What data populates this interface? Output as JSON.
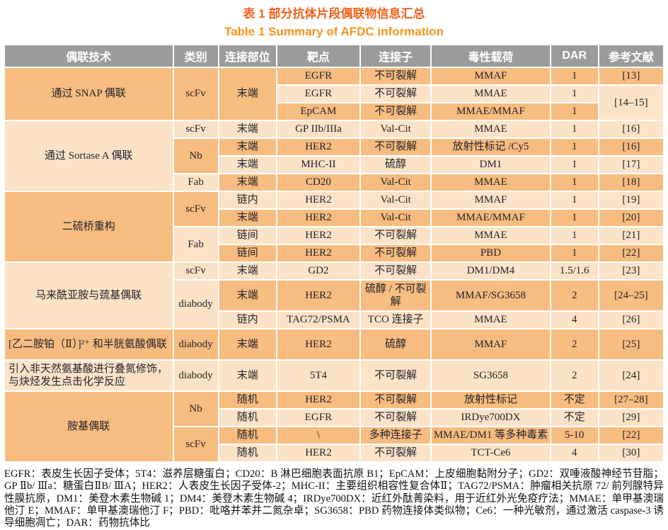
{
  "colors": {
    "title_zh": "#F2611F",
    "title_en": "#F7941D",
    "header_bg": "#9B9B9B",
    "header_text": "#FFFFFF",
    "row_dark": "#F7BC7F",
    "row_light": "#FCE3C8",
    "body_text": "#23232B",
    "page_bg": "#FFFFFF"
  },
  "title": {
    "zh": "表 1 部分抗体片段偶联物信息汇总",
    "en": "Table 1  Summary of AFDC information"
  },
  "header": {
    "cols": [
      "偶联技术",
      "类别",
      "连接部位",
      "靶点",
      "连接子",
      "毒性载荷",
      "DAR",
      "参考文献"
    ]
  },
  "rows": [
    {
      "tech": "通过 SNAP 偶联",
      "cat": "scFv",
      "site": "末端",
      "target": "EGFR",
      "linker": "不可裂解",
      "payload": "MMAF",
      "dar": "1",
      "ref": "[13]"
    },
    {
      "target": "EGFR",
      "linker": "不可裂解",
      "payload": "MMAE",
      "dar": "1",
      "ref": "[14–15]"
    },
    {
      "target": "EpCAM",
      "linker": "不可裂解",
      "payload": "MMAE/MMAF",
      "dar": "1"
    },
    {
      "tech": "通过 Sortase A 偶联",
      "cat": "scFv",
      "site": "末端",
      "target": "GP IIb/IIIa",
      "linker": "Val-Cit",
      "payload": "MMAE",
      "dar": "1",
      "ref": "[16]"
    },
    {
      "cat": "Nb",
      "site": "末端",
      "target": "HER2",
      "linker": "不可裂解",
      "payload": "放射性标记 /Cy5",
      "dar": "1",
      "ref": "[16]"
    },
    {
      "site": "末端",
      "target": "MHC-II",
      "linker": "硫醇",
      "payload": "DM1",
      "dar": "1",
      "ref": "[17]"
    },
    {
      "cat": "Fab",
      "site": "末端",
      "target": "CD20",
      "linker": "Val-Cit",
      "payload": "MMAE",
      "dar": "1",
      "ref": "[18]"
    },
    {
      "tech": "二硫桥重构",
      "cat": "scFv",
      "site": "链内",
      "target": "HER2",
      "linker": "Val-Cit",
      "payload": "MMAF",
      "dar": "1",
      "ref": "[19]"
    },
    {
      "site": "末端",
      "target": "HER2",
      "linker": "Val-Cit",
      "payload": "MMAE/MMAF",
      "dar": "1",
      "ref": "[20]"
    },
    {
      "cat": "Fab",
      "site": "链间",
      "target": "HER2",
      "linker": "不可裂解",
      "payload": "MMAE",
      "dar": "1",
      "ref": "[21]"
    },
    {
      "site": "链间",
      "target": "HER2",
      "linker": "不可裂解",
      "payload": "PBD",
      "dar": "1",
      "ref": "[22]"
    },
    {
      "tech": "马来酰亚胺与巯基偶联",
      "cat": "scFv",
      "site": "末端",
      "target": "GD2",
      "linker": "不可裂解",
      "payload": "DM1/DM4",
      "dar": "1.5/1.6",
      "ref": "[23]"
    },
    {
      "cat": "diabody",
      "site": "末端",
      "target": "HER2",
      "linker": "硫醇 / 不可裂解",
      "payload": "MMAF/SG3658",
      "dar": "2",
      "ref": "[24–25]"
    },
    {
      "site": "链内",
      "target": "TAG72/PSMA",
      "linker": "TCO 连接子",
      "payload": "MMAE",
      "dar": "4",
      "ref": "[26]"
    },
    {
      "tech": "[乙二胺铂（Ⅱ）]²⁺ 和半胱氨酸偶联",
      "cat": "diabody",
      "site": "末端",
      "target": "HER2",
      "linker": "硫醇",
      "payload": "MMAF",
      "dar": "2",
      "ref": "[25]"
    },
    {
      "tech": "引入非天然氨基酸进行叠氮修饰，与炔烃发生点击化学反应",
      "cat": "diabody",
      "site": "末端",
      "target": "5T4",
      "linker": "不可裂解",
      "payload": "SG3658",
      "dar": "2",
      "ref": "[24]"
    },
    {
      "tech": "胺基偶联",
      "cat": "Nb",
      "site": "随机",
      "target": "HER2",
      "linker": "不可裂解",
      "payload": "放射性标记",
      "dar": "不定",
      "ref": "[27–28]"
    },
    {
      "site": "随机",
      "target": "EGFR",
      "linker": "不可裂解",
      "payload": "IRDye700DX",
      "dar": "不定",
      "ref": "[29]"
    },
    {
      "cat": "scFv",
      "site": "随机",
      "target": "\\",
      "linker": "多种连接子",
      "payload": "MMAE/DM1 等多种毒素",
      "dar": "5-10",
      "ref": "[22]"
    },
    {
      "site": "随机",
      "target": "HER2",
      "linker": "不可裂解",
      "payload": "TCT-Ce6",
      "dar": "4",
      "ref": "[30]"
    }
  ],
  "footnote": "EGFR：表皮生长因子受体；5T4：滋养层糖蛋白；CD20：B 淋巴细胞表面抗原 B1；EpCAM：上皮细胞黏附分子；GD2：双唾液酸神经节苷脂；GP Ⅱb/ Ⅲa：糖蛋白ⅡB/ ⅢA；HER2：人表皮生长因子受体-2；MHC-II：主要组织相容性复合体Ⅱ；TAG72/PSMA：肿瘤相关抗原 72/ 前列腺特异性膜抗原，DM1：美登木素生物碱 1；DM4：美登木素生物碱 4；IRDye700DX：近红外酞菁染料，用于近红外光免疫疗法；MMAE：单甲基澳瑞他汀 E；MMAF：单甲基澳瑞他汀 F；PBD：吡咯并苯并二氮杂卓；SG3658：PBD 药物连接体类似物；Ce6：一种光敏剂，通过激活 caspase-3 诱导细胞凋亡；DAR：药物抗体比"
}
